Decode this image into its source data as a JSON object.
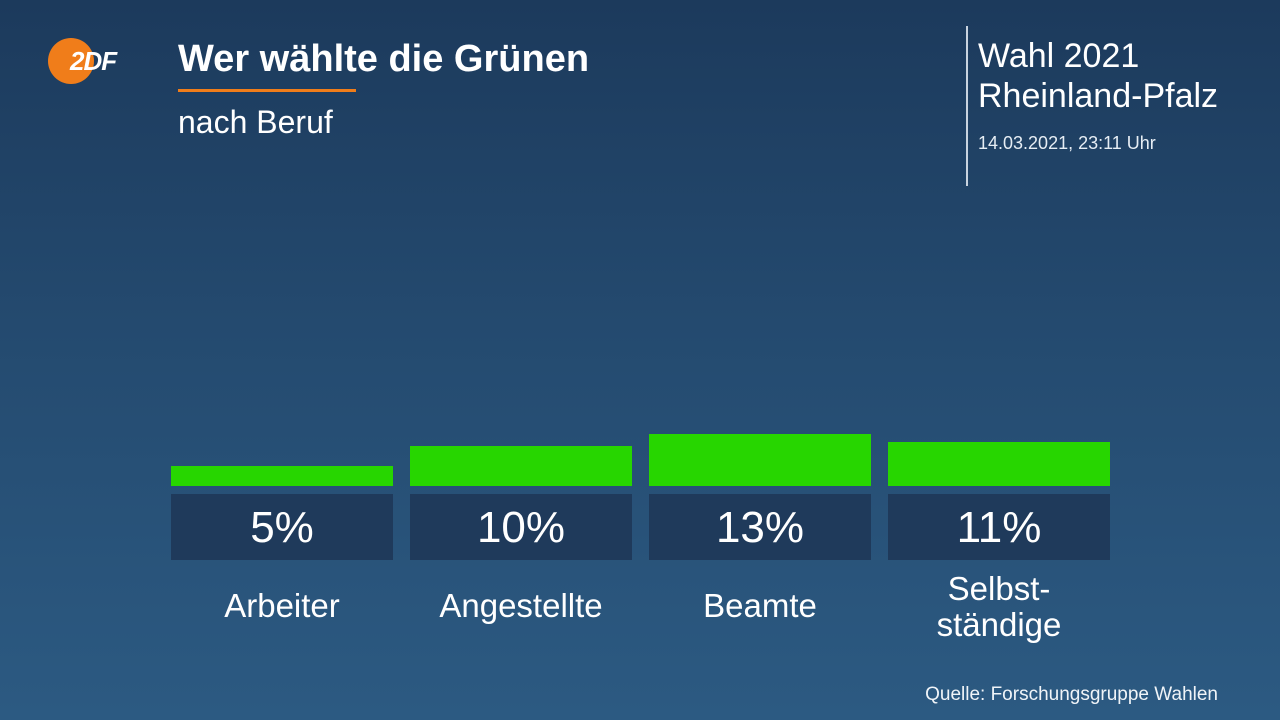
{
  "header": {
    "logo_text": "2DF",
    "title": "Wer wählte die Grünen",
    "subtitle": "nach Beruf",
    "election_line1": "Wahl 2021",
    "election_line2": "Rheinland-Pfalz",
    "timestamp": "14.03.2021, 23:11 Uhr"
  },
  "footer": {
    "source": "Quelle: Forschungsgruppe Wahlen"
  },
  "colors": {
    "bar": "#27d600",
    "label_box": "#1f3a5b",
    "accent": "#f07d1a"
  },
  "chart_data": {
    "type": "bar",
    "title": "Wer wählte die Grünen",
    "subtitle": "nach Beruf",
    "categories": [
      [
        "Arbeiter"
      ],
      [
        "Angestellte"
      ],
      [
        "Beamte"
      ],
      [
        "Selbst-",
        "ständige"
      ]
    ],
    "values": [
      5,
      10,
      13,
      11
    ],
    "value_labels": [
      "5%",
      "10%",
      "13%",
      "11%"
    ],
    "unit": "%",
    "grid": false,
    "legend": "none"
  }
}
